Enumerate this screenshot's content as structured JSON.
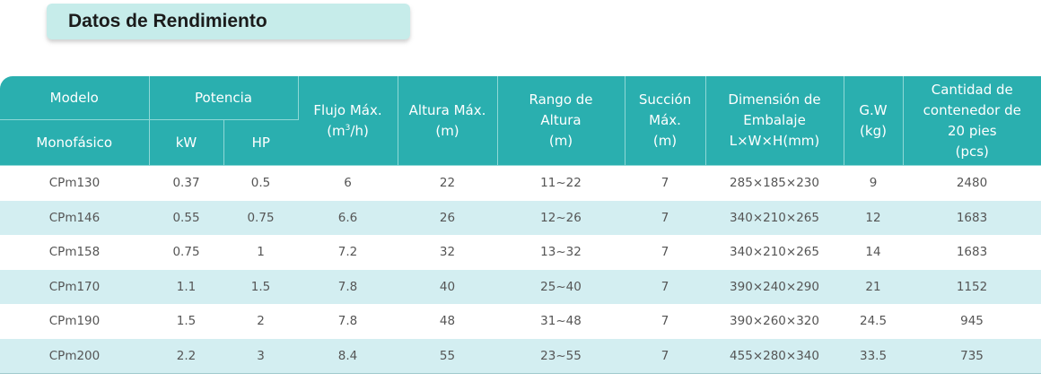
{
  "title": "Datos de Rendimiento",
  "header": {
    "modelo": "Modelo",
    "monofasico": "Monofásico",
    "potencia": "Potencia",
    "kw": "kW",
    "hp": "HP",
    "flujo_line1": "Flujo Máx.",
    "flujo_unit_pre": "(m",
    "flujo_unit_sup": "3",
    "flujo_unit_post": "/h)",
    "altura_line1": "Altura Máx.",
    "altura_line2": "(m)",
    "rango_line1": "Rango de",
    "rango_line2": "Altura",
    "rango_line3": "(m)",
    "succion_line1": "Succión",
    "succion_line2": "Máx.",
    "succion_line3": "(m)",
    "dim_line1": "Dimensión de",
    "dim_line2": "Embalaje",
    "dim_line3": "L×W×H(mm)",
    "gw_line1": "G.W",
    "gw_line2": "(kg)",
    "cant_line1": "Cantidad de",
    "cant_line2": "contenedor de",
    "cant_line3": "20 pies",
    "cant_line4": "(pcs)"
  },
  "rows": [
    {
      "model": "CPm130",
      "kw": "0.37",
      "hp": "0.5",
      "flow": "6",
      "head": "22",
      "range": "11~22",
      "suction": "7",
      "dim": "285×185×230",
      "gw": "9",
      "qty": "2480"
    },
    {
      "model": "CPm146",
      "kw": "0.55",
      "hp": "0.75",
      "flow": "6.6",
      "head": "26",
      "range": "12~26",
      "suction": "7",
      "dim": "340×210×265",
      "gw": "12",
      "qty": "1683"
    },
    {
      "model": "CPm158",
      "kw": "0.75",
      "hp": "1",
      "flow": "7.2",
      "head": "32",
      "range": "13~32",
      "suction": "7",
      "dim": "340×210×265",
      "gw": "14",
      "qty": "1683"
    },
    {
      "model": "CPm170",
      "kw": "1.1",
      "hp": "1.5",
      "flow": "7.8",
      "head": "40",
      "range": "25~40",
      "suction": "7",
      "dim": "390×240×290",
      "gw": "21",
      "qty": "1152"
    },
    {
      "model": "CPm190",
      "kw": "1.5",
      "hp": "2",
      "flow": "7.8",
      "head": "48",
      "range": "31~48",
      "suction": "7",
      "dim": "390×260×320",
      "gw": "24.5",
      "qty": "945"
    },
    {
      "model": "CPm200",
      "kw": "2.2",
      "hp": "3",
      "flow": "8.4",
      "head": "55",
      "range": "23~55",
      "suction": "7",
      "dim": "455×280×340",
      "gw": "33.5",
      "qty": "735"
    }
  ],
  "colors": {
    "header_bg": "#2aafaf",
    "stripe": "#d3eef1",
    "title_bg": "#c6ecea"
  }
}
